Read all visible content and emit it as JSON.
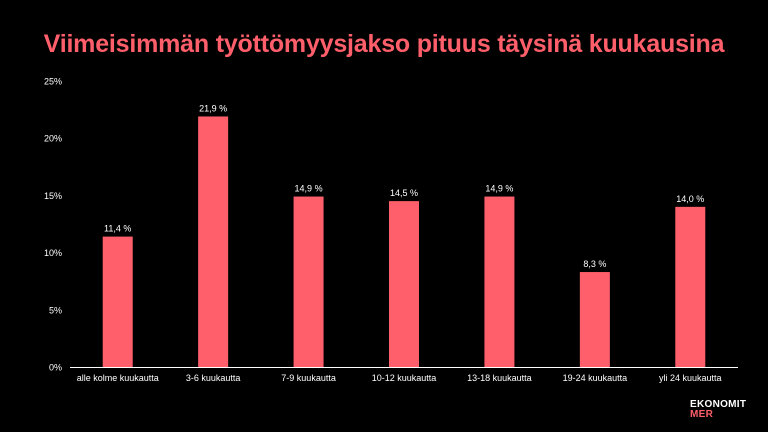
{
  "colors": {
    "background": "#000000",
    "accent": "#ff5f6a",
    "text": "#ffffff",
    "axis": "#ffffff"
  },
  "chart_data": {
    "type": "bar",
    "title": "Viimeisimmän työttömyysjakso pituus täysinä kuukausina",
    "categories": [
      "alle kolme kuukautta",
      "3-6 kuukautta",
      "7-9 kuukautta",
      "10-12 kuukautta",
      "13-18 kuukautta",
      "19-24 kuukautta",
      "yli 24 kuukautta"
    ],
    "values": [
      11.4,
      21.9,
      14.9,
      14.5,
      14.9,
      8.3,
      14.0
    ],
    "data_labels": [
      "11,4 %",
      "21,9 %",
      "14,9 %",
      "14,5 %",
      "14,9 %",
      "8,3 %",
      "14,0 %"
    ],
    "ylim": [
      0,
      25
    ],
    "yticks": [
      0,
      5,
      10,
      15,
      20,
      25
    ],
    "ytick_labels": [
      "0%",
      "5%",
      "10%",
      "15%",
      "20%",
      "25%"
    ],
    "xlabel": "",
    "ylabel": "",
    "grid": false,
    "legend": "none"
  },
  "logo": {
    "line1": "EKONOMIT",
    "line2": "MER"
  }
}
